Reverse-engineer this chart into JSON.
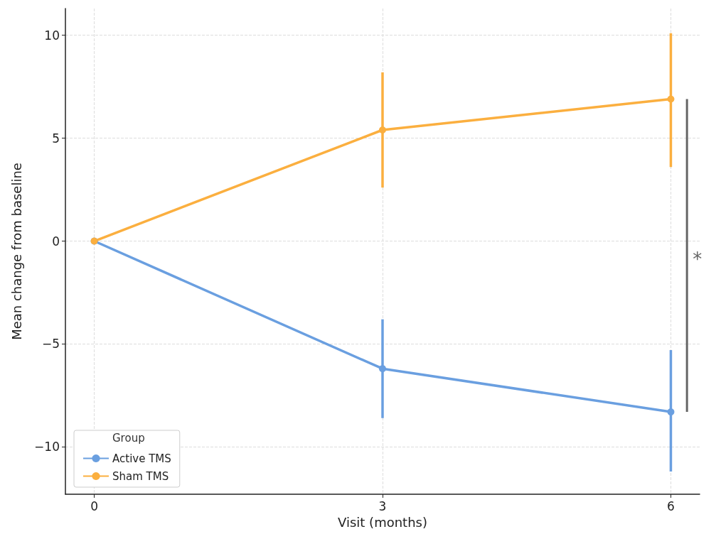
{
  "chart_data": {
    "type": "line",
    "xlabel": "Visit (months)",
    "ylabel": "Mean change from baseline",
    "legend_title": "Group",
    "x": [
      0,
      3,
      6
    ],
    "series": [
      {
        "name": "Active TMS",
        "color": "#6a9fe0",
        "values": [
          0,
          -6.2,
          -8.3
        ],
        "errors": [
          null,
          [
            -8.6,
            -3.8
          ],
          [
            -11.2,
            -5.3
          ]
        ]
      },
      {
        "name": "Sham TMS",
        "color": "#fbaf3f",
        "values": [
          0,
          5.4,
          6.9
        ],
        "errors": [
          null,
          [
            2.6,
            8.2
          ],
          [
            3.6,
            10.1
          ]
        ]
      }
    ],
    "xlim": [
      -0.3,
      6.3
    ],
    "xticks": [
      0,
      3,
      6
    ],
    "ylim": [
      -12.3,
      11.3
    ],
    "yticks": [
      -10,
      -5,
      0,
      5,
      10
    ],
    "grid": true,
    "legend": "bottom left",
    "marker": "circle",
    "line_style": "solid",
    "annotations": [
      "*"
    ]
  }
}
